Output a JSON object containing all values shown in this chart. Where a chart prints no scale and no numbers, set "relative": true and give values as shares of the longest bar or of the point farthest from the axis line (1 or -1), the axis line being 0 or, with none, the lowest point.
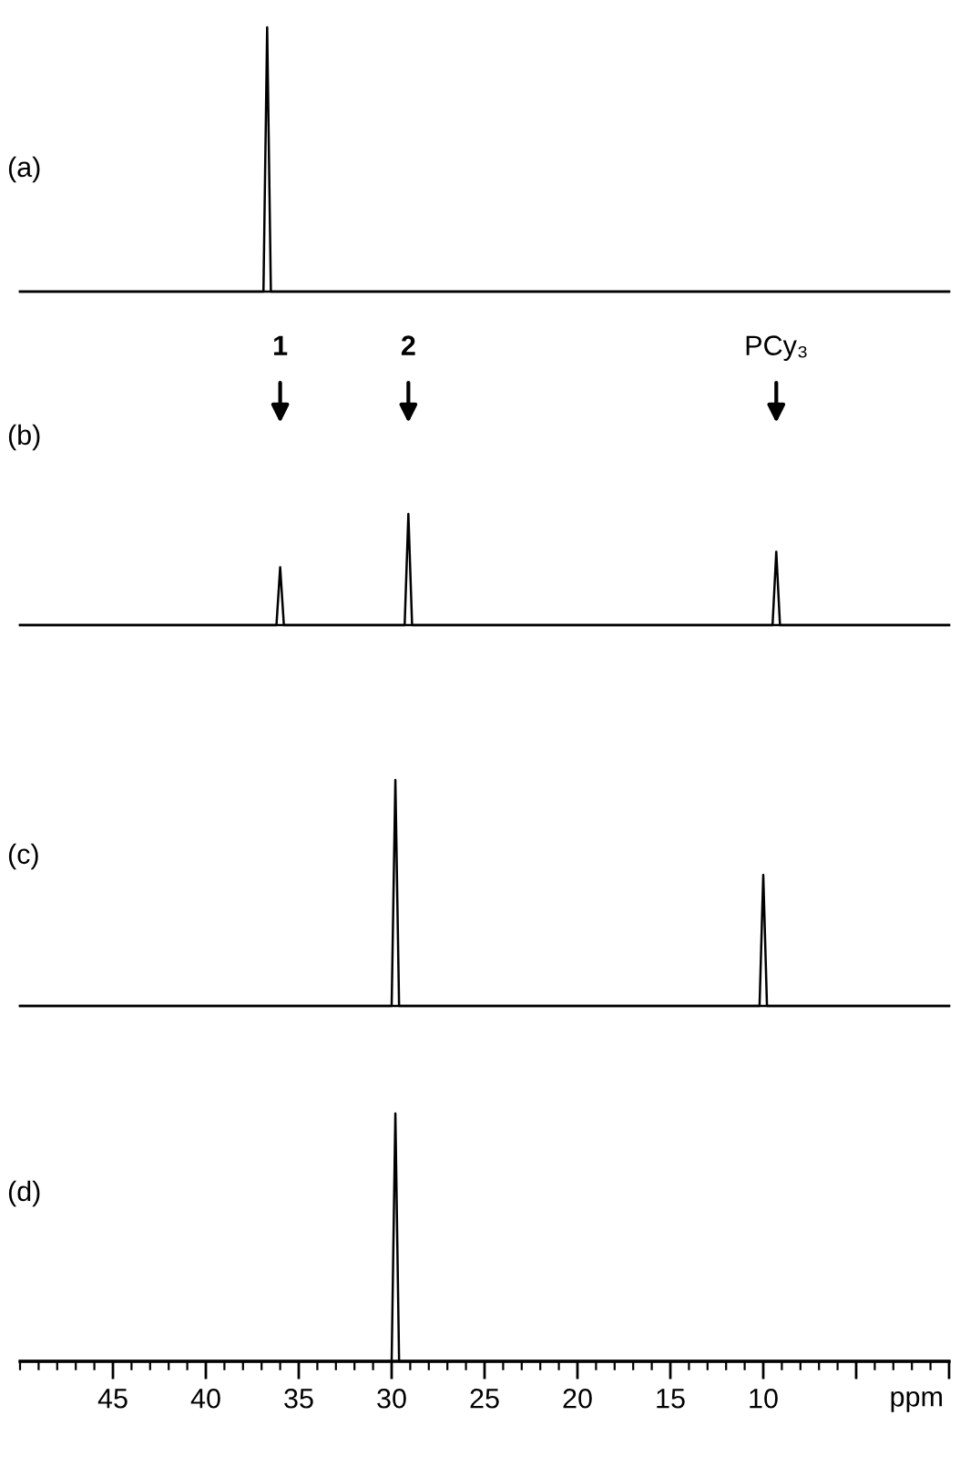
{
  "chart_data": [
    {
      "type": "line",
      "relative": true,
      "xlim": [
        50,
        0
      ],
      "tick_labels": false,
      "grid": false,
      "legend": false,
      "marker": "none",
      "line_style": "solid",
      "annotations": [
        "(a)"
      ],
      "series": [
        {
          "color": "#000000",
          "x": [
            50,
            36.9,
            36.7,
            36.5,
            0
          ],
          "values": [
            0,
            0,
            1,
            0,
            0
          ]
        }
      ]
    },
    {
      "type": "line",
      "relative": true,
      "xlim": [
        50,
        0
      ],
      "tick_labels": false,
      "grid": false,
      "legend": false,
      "marker": "none",
      "line_style": "solid",
      "annotations": [
        "(b)",
        "1",
        "2",
        "PCy₃"
      ],
      "series": [
        {
          "color": "#000000",
          "x": [
            50,
            36.2,
            36.0,
            35.8,
            29.3,
            29.1,
            28.9,
            9.5,
            9.3,
            9.1,
            0
          ],
          "values": [
            0,
            0,
            0.52,
            0,
            0,
            1,
            0,
            0,
            0.66,
            0,
            0
          ]
        }
      ]
    },
    {
      "type": "line",
      "relative": true,
      "xlim": [
        50,
        0
      ],
      "tick_labels": false,
      "grid": false,
      "legend": false,
      "marker": "none",
      "line_style": "solid",
      "annotations": [
        "(c)"
      ],
      "series": [
        {
          "color": "#000000",
          "x": [
            50,
            30.0,
            29.8,
            29.6,
            10.2,
            10.0,
            9.8,
            0
          ],
          "values": [
            0,
            0,
            1,
            0,
            0,
            0.58,
            0,
            0
          ]
        }
      ]
    },
    {
      "type": "line",
      "relative": true,
      "xlim": [
        50,
        0
      ],
      "tick_labels": "x",
      "grid": false,
      "legend": false,
      "marker": "none",
      "line_style": "solid",
      "annotations": [
        "(d)"
      ],
      "xlabel": "ppm",
      "xticks": [
        45,
        40,
        35,
        30,
        25,
        20,
        15,
        10,
        {
          "value": 5,
          "label": null
        },
        {
          "value": 0,
          "label": null
        }
      ],
      "series": [
        {
          "color": "#000000",
          "x": [
            50,
            30.0,
            29.8,
            29.6,
            0
          ],
          "values": [
            0,
            0,
            1,
            0,
            0
          ]
        }
      ]
    }
  ]
}
